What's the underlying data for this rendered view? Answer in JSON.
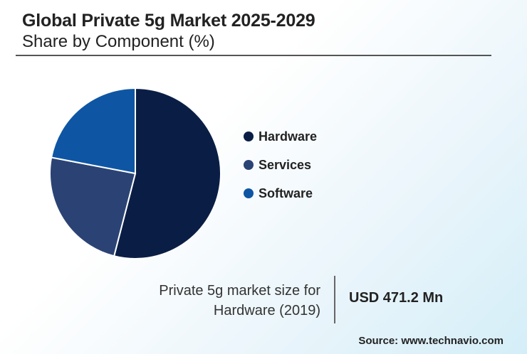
{
  "header": {
    "title": "Global Private 5g Market 2025-2029",
    "subtitle": "Share by Component (%)"
  },
  "chart_data": {
    "type": "pie",
    "categories": [
      "Hardware",
      "Services",
      "Software"
    ],
    "values": [
      54,
      24,
      22
    ],
    "colors": [
      "#0a1e45",
      "#2b4374",
      "#0e56a4"
    ],
    "legend": "right"
  },
  "stat": {
    "label_line1": "Private 5g market size for",
    "label_line2": "Hardware (2019)",
    "value": "USD 471.2 Mn"
  },
  "footer": {
    "source": "Source: www.technavio.com"
  }
}
